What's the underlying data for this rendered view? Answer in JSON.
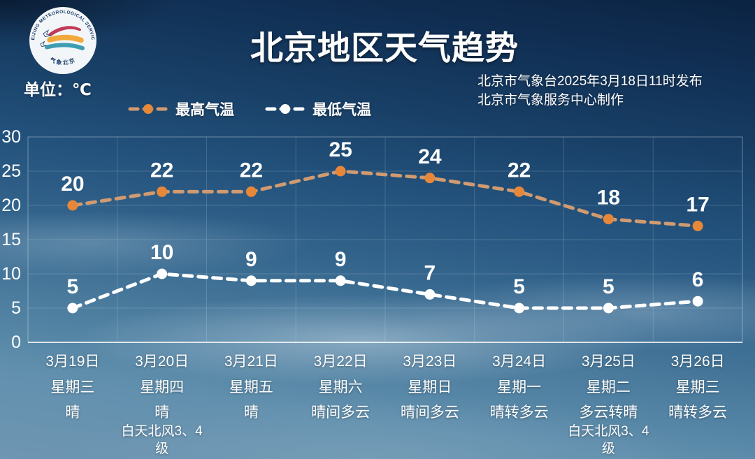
{
  "header": {
    "title": "北京地区天气趋势",
    "unit_label": "单位：℃",
    "publisher_line1": "北京市气象台2025年3月18日11时发布",
    "publisher_line2": "北京市气象服务中心制作",
    "logo": {
      "ring_text_top": "BEIJING METEOROLOGICAL SERVICE",
      "ring_text_bottom": "气象北京"
    }
  },
  "legend": [
    {
      "label": "最高气温",
      "color": "#e6873a",
      "line_color": "#d19a70"
    },
    {
      "label": "最低气温",
      "color": "#ffffff",
      "line_color": "#ffffff"
    }
  ],
  "chart_data": {
    "type": "line",
    "title": "北京地区天气趋势",
    "ylabel": "单位：℃",
    "ylim": [
      0,
      30
    ],
    "yticks": [
      30,
      25,
      20,
      15,
      10,
      5,
      0
    ],
    "grid": true,
    "legend_position": "top",
    "categories": [
      "3月19日",
      "3月20日",
      "3月21日",
      "3月22日",
      "3月23日",
      "3月24日",
      "3月25日",
      "3月26日"
    ],
    "weekdays": [
      "星期三",
      "星期四",
      "星期五",
      "星期六",
      "星期日",
      "星期一",
      "星期二",
      "星期三"
    ],
    "weather": [
      "晴",
      "晴",
      "晴",
      "晴间多云",
      "晴间多云",
      "晴转多云",
      "多云转晴",
      "晴转多云"
    ],
    "wind": [
      "",
      "白天北风3、4级",
      "",
      "",
      "",
      "",
      "白天北风3、4级",
      ""
    ],
    "series": [
      {
        "name": "最高气温",
        "values": [
          20,
          22,
          22,
          25,
          24,
          22,
          18,
          17
        ],
        "color": "#e6873a",
        "line_color": "#d19a70"
      },
      {
        "name": "最低气温",
        "values": [
          5,
          10,
          9,
          9,
          7,
          5,
          5,
          6
        ],
        "color": "#ffffff",
        "line_color": "#ffffff"
      }
    ]
  }
}
